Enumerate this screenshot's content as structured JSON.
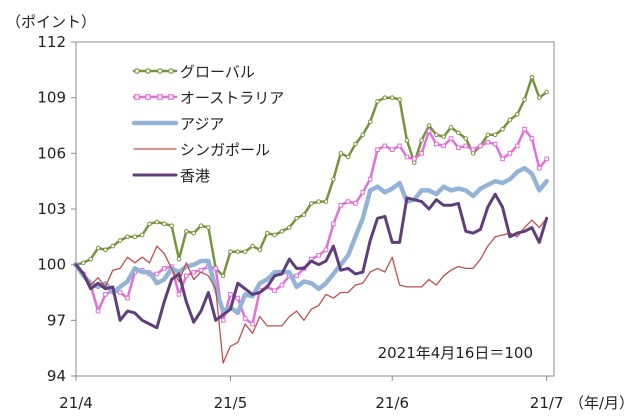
{
  "chart_data": {
    "type": "line",
    "ylabel": "（ポイント）",
    "xlabel": "（年/月）",
    "ylim": [
      94,
      112
    ],
    "yticks": [
      94,
      97,
      100,
      103,
      106,
      109,
      112
    ],
    "xlim": [
      0,
      65
    ],
    "xticks": [
      {
        "x": 0,
        "label": "21/4"
      },
      {
        "x": 21,
        "label": "21/5"
      },
      {
        "x": 43,
        "label": "21/6"
      },
      {
        "x": 64,
        "label": "21/7"
      }
    ],
    "annotation": "2021年4月16日＝100",
    "legend_position": "top-left",
    "series": [
      {
        "name": "グローバル",
        "color": "#77933c",
        "style": "marker-dot",
        "x": [
          0,
          1,
          2,
          3,
          4,
          5,
          6,
          7,
          8,
          9,
          10,
          11,
          12,
          13,
          14,
          15,
          16,
          17,
          18,
          19,
          20,
          21,
          22,
          23,
          24,
          25,
          26,
          27,
          28,
          29,
          30,
          31,
          32,
          33,
          34,
          35,
          36,
          37,
          38,
          39,
          40,
          41,
          42,
          43,
          44,
          45,
          46,
          47,
          48,
          49,
          50,
          51,
          52,
          53,
          54,
          55,
          56,
          57,
          58,
          59,
          60,
          61,
          62,
          63,
          64
        ],
        "values": [
          100.0,
          100.1,
          100.3,
          100.9,
          100.8,
          101.0,
          101.3,
          101.5,
          101.5,
          101.6,
          102.2,
          102.3,
          102.2,
          102.1,
          100.3,
          101.8,
          101.7,
          102.1,
          102.0,
          99.8,
          99.4,
          100.7,
          100.7,
          100.7,
          101.0,
          100.8,
          101.7,
          101.6,
          101.8,
          102.0,
          102.5,
          102.7,
          103.3,
          103.4,
          103.4,
          104.6,
          106.0,
          105.8,
          106.5,
          107.0,
          107.7,
          108.8,
          109.0,
          109.0,
          108.9,
          106.7,
          105.5,
          106.7,
          107.5,
          107.0,
          106.9,
          107.4,
          107.1,
          106.8,
          106.0,
          106.4,
          107.0,
          107.0,
          107.3,
          107.8,
          108.1,
          108.9,
          110.1,
          109.0,
          109.3
        ]
      },
      {
        "name": "オーストラリア",
        "color": "#e36fd8",
        "style": "marker-square",
        "x": [
          0,
          1,
          2,
          3,
          4,
          5,
          6,
          7,
          8,
          9,
          10,
          11,
          12,
          13,
          14,
          15,
          16,
          17,
          18,
          19,
          20,
          21,
          22,
          23,
          24,
          25,
          26,
          27,
          28,
          29,
          30,
          31,
          32,
          33,
          34,
          35,
          36,
          37,
          38,
          39,
          40,
          41,
          42,
          43,
          44,
          45,
          46,
          47,
          48,
          49,
          50,
          51,
          52,
          53,
          54,
          55,
          56,
          57,
          58,
          59,
          60,
          61,
          62,
          63,
          64
        ],
        "values": [
          100.0,
          99.5,
          98.9,
          97.5,
          98.4,
          98.6,
          98.5,
          98.2,
          99.6,
          99.7,
          99.5,
          99.5,
          99.8,
          99.9,
          98.4,
          99.4,
          99.6,
          99.7,
          99.9,
          99.8,
          97.0,
          98.4,
          98.2,
          97.1,
          96.8,
          98.6,
          98.8,
          98.6,
          98.9,
          99.4,
          99.4,
          99.8,
          100.3,
          100.5,
          100.8,
          102.2,
          103.2,
          103.4,
          103.3,
          103.9,
          104.6,
          106.2,
          106.4,
          106.2,
          106.4,
          105.8,
          105.7,
          106.0,
          107.2,
          106.5,
          106.4,
          106.8,
          106.3,
          106.4,
          106.2,
          106.4,
          106.6,
          106.5,
          105.7,
          106.0,
          106.4,
          107.3,
          106.8,
          105.2,
          105.7
        ]
      },
      {
        "name": "アジア",
        "color": "#95b3d7",
        "style": "thick",
        "x": [
          0,
          1,
          2,
          3,
          4,
          5,
          6,
          7,
          8,
          9,
          10,
          11,
          12,
          13,
          14,
          15,
          16,
          17,
          18,
          19,
          20,
          21,
          22,
          23,
          24,
          25,
          26,
          27,
          28,
          29,
          30,
          31,
          32,
          33,
          34,
          35,
          36,
          37,
          38,
          39,
          40,
          41,
          42,
          43,
          44,
          45,
          46,
          47,
          48,
          49,
          50,
          51,
          52,
          53,
          54,
          55,
          56,
          57,
          58,
          59,
          60,
          61,
          62,
          63,
          64
        ],
        "values": [
          100.0,
          99.4,
          99.0,
          98.8,
          99.0,
          98.5,
          98.8,
          99.1,
          99.8,
          99.6,
          99.6,
          99.0,
          99.2,
          99.8,
          99.6,
          99.9,
          100.0,
          100.2,
          100.2,
          98.7,
          97.5,
          97.7,
          97.4,
          98.4,
          98.3,
          99.0,
          99.2,
          99.6,
          99.6,
          99.6,
          98.8,
          99.1,
          99.0,
          98.7,
          99.0,
          99.5,
          100.0,
          100.5,
          101.5,
          102.5,
          104.0,
          104.2,
          103.9,
          104.1,
          104.4,
          103.4,
          103.5,
          104.0,
          104.0,
          103.8,
          104.2,
          104.0,
          104.1,
          104.0,
          103.7,
          104.1,
          104.3,
          104.5,
          104.4,
          104.6,
          105.0,
          105.2,
          104.9,
          104.0,
          104.5
        ]
      },
      {
        "name": "シンガポール",
        "color": "#c0504d",
        "style": "thin",
        "x": [
          0,
          1,
          2,
          3,
          4,
          5,
          6,
          7,
          8,
          9,
          10,
          11,
          12,
          13,
          14,
          15,
          16,
          17,
          18,
          19,
          20,
          21,
          22,
          23,
          24,
          25,
          26,
          27,
          28,
          29,
          30,
          31,
          32,
          33,
          34,
          35,
          36,
          37,
          38,
          39,
          40,
          41,
          42,
          43,
          44,
          45,
          46,
          47,
          48,
          49,
          50,
          51,
          52,
          53,
          54,
          55,
          56,
          57,
          58,
          59,
          60,
          61,
          62,
          63,
          64
        ],
        "values": [
          100.0,
          99.6,
          98.9,
          99.3,
          98.8,
          99.7,
          99.8,
          100.4,
          100.1,
          100.4,
          100.1,
          101.0,
          100.6,
          99.8,
          99.1,
          100.1,
          99.2,
          99.6,
          99.4,
          98.7,
          94.7,
          95.6,
          95.8,
          96.8,
          96.3,
          97.2,
          96.7,
          96.7,
          96.7,
          97.2,
          97.5,
          97.0,
          97.6,
          97.8,
          98.4,
          98.2,
          98.5,
          98.5,
          98.9,
          99.0,
          99.6,
          99.8,
          99.6,
          100.4,
          98.9,
          98.8,
          98.8,
          98.8,
          99.2,
          98.9,
          99.4,
          99.7,
          99.9,
          99.8,
          99.8,
          100.3,
          101.0,
          101.5,
          101.6,
          101.7,
          101.5,
          102.0,
          102.4,
          102.0,
          102.5
        ]
      },
      {
        "name": "香港",
        "color": "#5f3f7a",
        "style": "medium",
        "x": [
          0,
          1,
          2,
          3,
          4,
          5,
          6,
          7,
          8,
          9,
          10,
          11,
          12,
          13,
          14,
          15,
          16,
          17,
          18,
          19,
          20,
          21,
          22,
          23,
          24,
          25,
          26,
          27,
          28,
          29,
          30,
          31,
          32,
          33,
          34,
          35,
          36,
          37,
          38,
          39,
          40,
          41,
          42,
          43,
          44,
          45,
          46,
          47,
          48,
          49,
          50,
          51,
          52,
          53,
          54,
          55,
          56,
          57,
          58,
          59,
          60,
          61,
          62,
          63,
          64
        ],
        "values": [
          100.0,
          99.5,
          98.7,
          99.0,
          98.7,
          98.8,
          97.0,
          97.5,
          97.4,
          97.0,
          96.8,
          96.6,
          98.0,
          99.2,
          99.5,
          98.0,
          96.9,
          97.5,
          98.5,
          97.0,
          97.3,
          97.6,
          99.0,
          98.7,
          98.4,
          98.5,
          98.8,
          99.4,
          99.5,
          100.3,
          99.8,
          99.8,
          100.2,
          100.0,
          100.2,
          101.0,
          99.7,
          99.8,
          99.5,
          99.6,
          101.3,
          102.5,
          102.6,
          101.2,
          101.2,
          103.6,
          103.5,
          103.4,
          103.0,
          103.5,
          103.2,
          103.2,
          103.3,
          101.8,
          101.7,
          101.9,
          103.1,
          103.8,
          103.1,
          101.5,
          101.7,
          101.8,
          102.0,
          101.2,
          102.5
        ]
      }
    ]
  }
}
